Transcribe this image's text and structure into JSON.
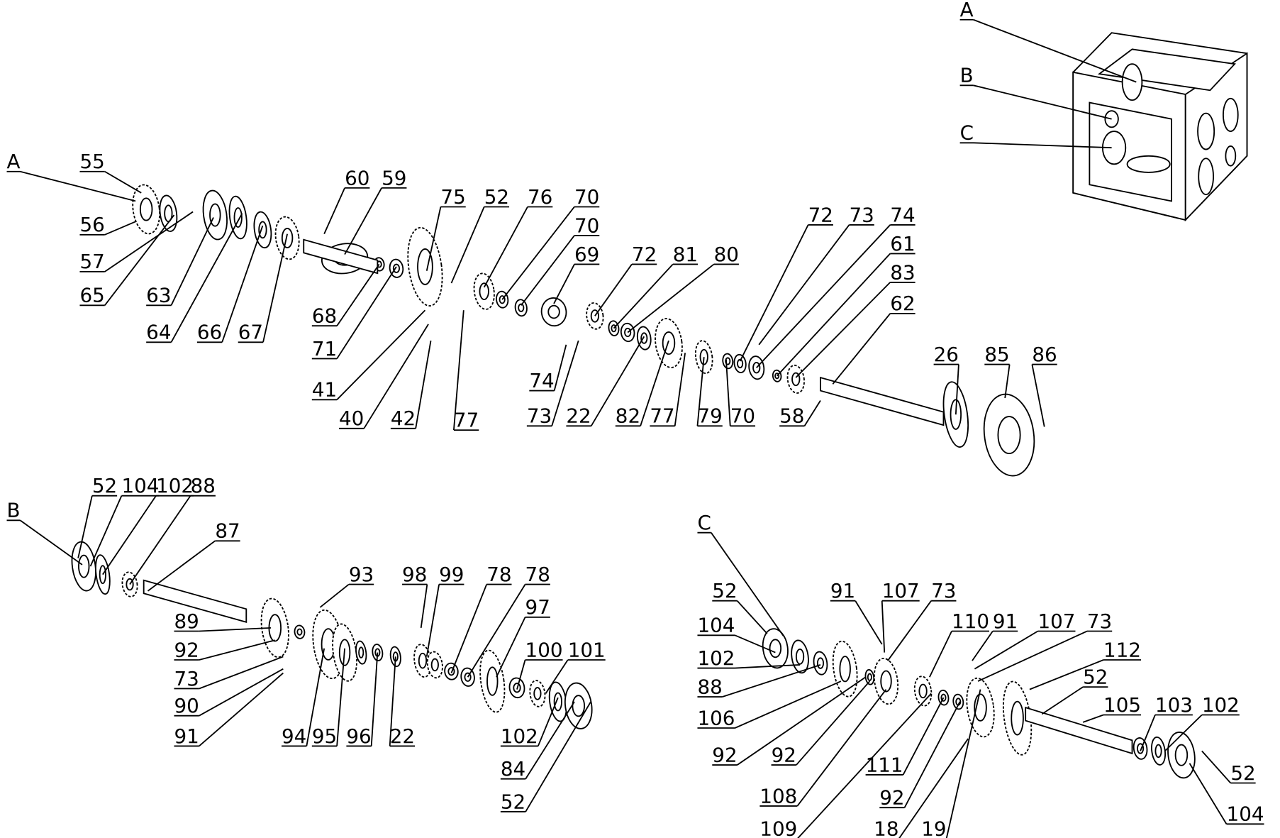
{
  "housing": {
    "labels": [
      "A",
      "B",
      "C"
    ]
  },
  "assembly_a": {
    "labels": [
      "A",
      "55",
      "56",
      "57",
      "65",
      "63",
      "64",
      "66",
      "67",
      "60",
      "59",
      "68",
      "71",
      "41",
      "40",
      "42",
      "75",
      "52",
      "76",
      "70",
      "70",
      "69",
      "77",
      "72",
      "81",
      "80",
      "74",
      "73",
      "22",
      "82",
      "77",
      "79",
      "70",
      "58",
      "72",
      "73",
      "74",
      "61",
      "83",
      "62",
      "26",
      "85",
      "86"
    ]
  },
  "assembly_b": {
    "labels": [
      "B",
      "52",
      "104",
      "102",
      "88",
      "87",
      "89",
      "92",
      "73",
      "90",
      "91",
      "93",
      "94",
      "95",
      "96",
      "22",
      "98",
      "99",
      "78",
      "78",
      "97",
      "100",
      "101",
      "102",
      "84",
      "52"
    ]
  },
  "assembly_c": {
    "labels": [
      "C",
      "52",
      "104",
      "102",
      "88",
      "106",
      "92",
      "92",
      "108",
      "109",
      "91",
      "107",
      "73",
      "110",
      "91",
      "107",
      "73",
      "112",
      "52",
      "105",
      "103",
      "102",
      "52",
      "104",
      "111",
      "92",
      "18",
      "19"
    ]
  }
}
